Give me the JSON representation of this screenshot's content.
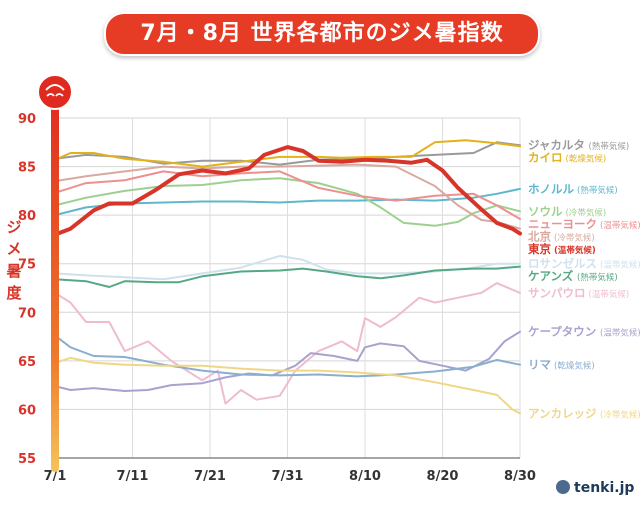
{
  "title": "7月・8月 世界各都市のジメ暑指数",
  "logo_text": "tenki.jp",
  "chart_data": {
    "type": "line",
    "title": "7月・8月 世界各都市のジメ暑指数",
    "ylabel": "ジメ暑度",
    "ylim": [
      55,
      90
    ],
    "yticks": [
      55,
      60,
      65,
      70,
      75,
      80,
      85,
      90
    ],
    "xlim": [
      1,
      61
    ],
    "xticks": [
      {
        "day": 1,
        "label": "7/1"
      },
      {
        "day": 11,
        "label": "7/11"
      },
      {
        "day": 21,
        "label": "7/21"
      },
      {
        "day": 31,
        "label": "7/31"
      },
      {
        "day": 41,
        "label": "8/10"
      },
      {
        "day": 51,
        "label": "8/20"
      },
      {
        "day": 61,
        "label": "8/30"
      }
    ],
    "grid": true,
    "legend": "right, labels at line ends",
    "series": [
      {
        "name": "ジャカルタ",
        "climate": "(熱帯気候)",
        "color": "#9a9a9a",
        "width": 2,
        "points": [
          [
            1,
            85.8
          ],
          [
            5,
            86.2
          ],
          [
            10,
            86
          ],
          [
            15,
            85.3
          ],
          [
            20,
            85.6
          ],
          [
            25,
            85.6
          ],
          [
            30,
            85.2
          ],
          [
            35,
            85.7
          ],
          [
            40,
            85.8
          ],
          [
            45,
            86
          ],
          [
            50,
            86.2
          ],
          [
            55,
            86.4
          ],
          [
            58,
            87.5
          ],
          [
            61,
            87.2
          ]
        ]
      },
      {
        "name": "カイロ",
        "climate": "(乾燥気候)",
        "color": "#e3b21b",
        "width": 2,
        "points": [
          [
            1,
            85.7
          ],
          [
            3,
            86.4
          ],
          [
            6,
            86.4
          ],
          [
            10,
            85.8
          ],
          [
            15,
            85.5
          ],
          [
            20,
            85
          ],
          [
            25,
            85.5
          ],
          [
            30,
            86
          ],
          [
            35,
            86
          ],
          [
            38,
            85.9
          ],
          [
            42,
            86
          ],
          [
            47,
            86
          ],
          [
            50,
            87.5
          ],
          [
            54,
            87.7
          ],
          [
            58,
            87.4
          ],
          [
            61,
            87.1
          ]
        ]
      },
      {
        "name": "ホノルル",
        "climate": "(熱帯気候)",
        "color": "#5fb7cc",
        "width": 2,
        "points": [
          [
            1,
            80
          ],
          [
            5,
            80.8
          ],
          [
            10,
            81.2
          ],
          [
            15,
            81.3
          ],
          [
            20,
            81.4
          ],
          [
            25,
            81.4
          ],
          [
            30,
            81.3
          ],
          [
            35,
            81.5
          ],
          [
            40,
            81.5
          ],
          [
            45,
            81.6
          ],
          [
            50,
            81.5
          ],
          [
            55,
            81.8
          ],
          [
            58,
            82.2
          ],
          [
            61,
            82.7
          ]
        ]
      },
      {
        "name": "ソウル",
        "climate": "(冷帯気候)",
        "color": "#9dd08f",
        "width": 2,
        "points": [
          [
            1,
            81
          ],
          [
            5,
            81.8
          ],
          [
            10,
            82.5
          ],
          [
            15,
            83
          ],
          [
            20,
            83.1
          ],
          [
            25,
            83.6
          ],
          [
            30,
            83.8
          ],
          [
            35,
            83.3
          ],
          [
            40,
            82.2
          ],
          [
            43,
            80.8
          ],
          [
            46,
            79.2
          ],
          [
            50,
            78.9
          ],
          [
            53,
            79.3
          ],
          [
            55,
            80.2
          ],
          [
            58,
            81
          ],
          [
            61,
            80.4
          ]
        ]
      },
      {
        "name": "ニューヨーク",
        "climate": "(温帯気候)",
        "color": "#ee8f90",
        "width": 2,
        "points": [
          [
            1,
            82.3
          ],
          [
            5,
            83.3
          ],
          [
            10,
            83.6
          ],
          [
            15,
            84.5
          ],
          [
            20,
            84
          ],
          [
            25,
            84.3
          ],
          [
            30,
            84.5
          ],
          [
            35,
            82.8
          ],
          [
            40,
            82
          ],
          [
            45,
            81.5
          ],
          [
            50,
            82
          ],
          [
            55,
            82.2
          ],
          [
            58,
            81
          ],
          [
            61,
            79.6
          ]
        ]
      },
      {
        "name": "北京",
        "climate": "(冷帯気候)",
        "color": "#d9a99f",
        "width": 2,
        "points": [
          [
            1,
            83.5
          ],
          [
            5,
            84
          ],
          [
            10,
            84.5
          ],
          [
            15,
            85
          ],
          [
            20,
            84.8
          ],
          [
            25,
            85
          ],
          [
            30,
            85
          ],
          [
            35,
            85.1
          ],
          [
            40,
            85.2
          ],
          [
            45,
            85
          ],
          [
            50,
            83
          ],
          [
            53,
            81
          ],
          [
            56,
            79.5
          ],
          [
            58,
            79.3
          ],
          [
            61,
            78.6
          ]
        ]
      },
      {
        "name": "東京",
        "climate": "(温帯気候)",
        "color": "#d8352a",
        "width": 4,
        "points": [
          [
            1,
            78
          ],
          [
            3,
            78.6
          ],
          [
            6,
            80.5
          ],
          [
            8,
            81.2
          ],
          [
            11,
            81.2
          ],
          [
            14,
            82.6
          ],
          [
            17,
            84.2
          ],
          [
            20,
            84.6
          ],
          [
            23,
            84.3
          ],
          [
            26,
            84.8
          ],
          [
            28,
            86.2
          ],
          [
            31,
            87
          ],
          [
            33,
            86.6
          ],
          [
            35,
            85.6
          ],
          [
            38,
            85.5
          ],
          [
            41,
            85.7
          ],
          [
            44,
            85.6
          ],
          [
            47,
            85.4
          ],
          [
            49,
            85.7
          ],
          [
            51,
            84.6
          ],
          [
            53,
            82.8
          ],
          [
            56,
            80.6
          ],
          [
            58,
            79.2
          ],
          [
            60,
            78.6
          ],
          [
            61,
            78.1
          ]
        ]
      },
      {
        "name": "ロサンゼルス",
        "climate": "(温帯気候)",
        "color": "#cfe2ec",
        "width": 2,
        "points": [
          [
            1,
            74
          ],
          [
            5,
            73.8
          ],
          [
            10,
            73.6
          ],
          [
            15,
            73.4
          ],
          [
            20,
            74
          ],
          [
            25,
            74.6
          ],
          [
            30,
            75.8
          ],
          [
            33,
            75.4
          ],
          [
            36,
            74.4
          ],
          [
            40,
            74
          ],
          [
            45,
            74
          ],
          [
            50,
            74.2
          ],
          [
            55,
            74.6
          ],
          [
            58,
            75
          ],
          [
            61,
            75
          ]
        ]
      },
      {
        "name": "ケアンズ",
        "climate": "(熱帯気候)",
        "color": "#56a884",
        "width": 2,
        "points": [
          [
            1,
            73.4
          ],
          [
            5,
            73.2
          ],
          [
            8,
            72.6
          ],
          [
            10,
            73.2
          ],
          [
            14,
            73.1
          ],
          [
            17,
            73.1
          ],
          [
            20,
            73.7
          ],
          [
            25,
            74.2
          ],
          [
            30,
            74.3
          ],
          [
            33,
            74.5
          ],
          [
            36,
            74.2
          ],
          [
            40,
            73.7
          ],
          [
            43,
            73.5
          ],
          [
            46,
            73.8
          ],
          [
            50,
            74.3
          ],
          [
            55,
            74.5
          ],
          [
            58,
            74.5
          ],
          [
            61,
            74.7
          ]
        ]
      },
      {
        "name": "サンパウロ",
        "climate": "(温帯気候)",
        "color": "#efbccf",
        "width": 2,
        "points": [
          [
            1,
            72
          ],
          [
            3,
            71
          ],
          [
            5,
            69
          ],
          [
            8,
            69
          ],
          [
            10,
            66
          ],
          [
            13,
            67
          ],
          [
            16,
            65
          ],
          [
            18,
            64
          ],
          [
            20,
            63
          ],
          [
            22,
            64
          ],
          [
            23,
            60.6
          ],
          [
            25,
            62
          ],
          [
            27,
            61
          ],
          [
            30,
            61.4
          ],
          [
            32,
            64
          ],
          [
            35,
            66
          ],
          [
            38,
            67
          ],
          [
            40,
            66
          ],
          [
            41,
            69.4
          ],
          [
            43,
            68.5
          ],
          [
            45,
            69.5
          ],
          [
            48,
            71.5
          ],
          [
            50,
            71
          ],
          [
            53,
            71.5
          ],
          [
            56,
            72
          ],
          [
            58,
            73
          ],
          [
            61,
            72
          ]
        ]
      },
      {
        "name": "ケープタウン",
        "climate": "(温帯気候)",
        "color": "#a8a2cf",
        "width": 2,
        "points": [
          [
            1,
            62.4
          ],
          [
            3,
            62
          ],
          [
            6,
            62.2
          ],
          [
            10,
            61.9
          ],
          [
            13,
            62
          ],
          [
            16,
            62.5
          ],
          [
            20,
            62.7
          ],
          [
            23,
            63.3
          ],
          [
            26,
            63.7
          ],
          [
            29,
            63.5
          ],
          [
            32,
            64.5
          ],
          [
            34,
            65.8
          ],
          [
            37,
            65.5
          ],
          [
            40,
            65
          ],
          [
            41,
            66.4
          ],
          [
            43,
            66.8
          ],
          [
            46,
            66.5
          ],
          [
            48,
            65
          ],
          [
            51,
            64.5
          ],
          [
            54,
            64
          ],
          [
            57,
            65.2
          ],
          [
            59,
            67
          ],
          [
            61,
            68
          ]
        ]
      },
      {
        "name": "リマ",
        "climate": "(乾燥気候)",
        "color": "#8aaed0",
        "width": 2,
        "points": [
          [
            1,
            67.6
          ],
          [
            3,
            66.4
          ],
          [
            6,
            65.5
          ],
          [
            10,
            65.4
          ],
          [
            15,
            64.6
          ],
          [
            20,
            64
          ],
          [
            25,
            63.6
          ],
          [
            30,
            63.5
          ],
          [
            35,
            63.6
          ],
          [
            40,
            63.4
          ],
          [
            45,
            63.6
          ],
          [
            50,
            63.9
          ],
          [
            55,
            64.4
          ],
          [
            58,
            65.1
          ],
          [
            61,
            64.6
          ]
        ]
      },
      {
        "name": "アンカレッジ",
        "climate": "(冷帯気候)",
        "color": "#f0d785",
        "width": 2,
        "points": [
          [
            1,
            64.8
          ],
          [
            3,
            65.3
          ],
          [
            6,
            64.8
          ],
          [
            10,
            64.6
          ],
          [
            15,
            64.5
          ],
          [
            20,
            64.5
          ],
          [
            25,
            64.2
          ],
          [
            30,
            64
          ],
          [
            35,
            64
          ],
          [
            40,
            63.8
          ],
          [
            45,
            63.5
          ],
          [
            50,
            62.8
          ],
          [
            55,
            62
          ],
          [
            58,
            61.5
          ],
          [
            60,
            60
          ],
          [
            61,
            59.6
          ]
        ]
      }
    ]
  }
}
